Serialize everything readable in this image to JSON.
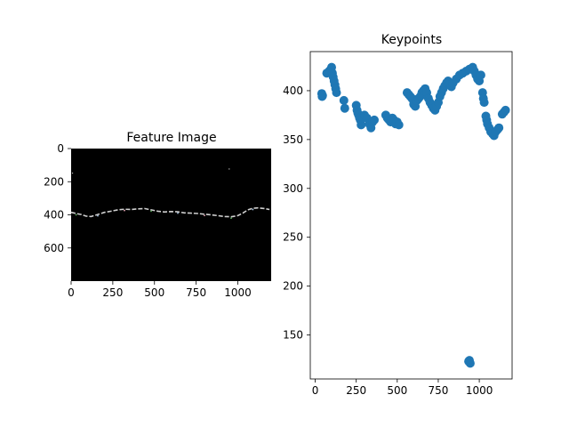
{
  "figure": {
    "background": "#ffffff"
  },
  "chart_data": [
    {
      "type": "image",
      "title": "Feature Image",
      "xlabel": "",
      "ylabel": "",
      "xlim": [
        0,
        1200
      ],
      "ylim": [
        800,
        0
      ],
      "xticks": [
        0,
        250,
        500,
        750,
        1000
      ],
      "yticks": [
        0,
        200,
        400,
        600
      ],
      "background": "#000000",
      "trace_color": "#cfcfcf",
      "accent_colors": [
        "#e0a0b0",
        "#60b060",
        "#a0c0e0"
      ],
      "trace": [
        [
          0,
          385
        ],
        [
          30,
          392
        ],
        [
          60,
          398
        ],
        [
          90,
          408
        ],
        [
          120,
          410
        ],
        [
          160,
          398
        ],
        [
          200,
          385
        ],
        [
          240,
          378
        ],
        [
          280,
          370
        ],
        [
          320,
          366
        ],
        [
          360,
          368
        ],
        [
          400,
          364
        ],
        [
          440,
          362
        ],
        [
          480,
          370
        ],
        [
          520,
          378
        ],
        [
          560,
          383
        ],
        [
          600,
          380
        ],
        [
          640,
          382
        ],
        [
          680,
          388
        ],
        [
          720,
          390
        ],
        [
          760,
          392
        ],
        [
          800,
          396
        ],
        [
          840,
          400
        ],
        [
          880,
          405
        ],
        [
          920,
          410
        ],
        [
          960,
          412
        ],
        [
          1000,
          405
        ],
        [
          1030,
          390
        ],
        [
          1060,
          370
        ],
        [
          1090,
          360
        ],
        [
          1120,
          358
        ],
        [
          1160,
          362
        ],
        [
          1190,
          368
        ]
      ],
      "specks": [
        [
          5,
          145
        ],
        [
          945,
          120
        ]
      ]
    },
    {
      "type": "scatter",
      "title": "Keypoints",
      "xlabel": "",
      "ylabel": "",
      "xlim": [
        -30,
        1200
      ],
      "ylim": [
        105,
        440
      ],
      "xticks": [
        0,
        250,
        500,
        750,
        1000
      ],
      "yticks": [
        150,
        200,
        250,
        300,
        350,
        400
      ],
      "color": "#1f77b4",
      "points": [
        [
          40,
          397
        ],
        [
          42,
          394
        ],
        [
          45,
          395
        ],
        [
          70,
          418
        ],
        [
          85,
          420
        ],
        [
          95,
          422
        ],
        [
          100,
          424
        ],
        [
          105,
          418
        ],
        [
          110,
          414
        ],
        [
          115,
          410
        ],
        [
          120,
          406
        ],
        [
          125,
          402
        ],
        [
          130,
          398
        ],
        [
          175,
          390
        ],
        [
          180,
          382
        ],
        [
          250,
          385
        ],
        [
          255,
          380
        ],
        [
          260,
          377
        ],
        [
          265,
          375
        ],
        [
          270,
          372
        ],
        [
          275,
          370
        ],
        [
          280,
          365
        ],
        [
          290,
          372
        ],
        [
          300,
          375
        ],
        [
          315,
          372
        ],
        [
          330,
          366
        ],
        [
          340,
          362
        ],
        [
          350,
          368
        ],
        [
          360,
          370
        ],
        [
          430,
          375
        ],
        [
          440,
          372
        ],
        [
          450,
          370
        ],
        [
          460,
          368
        ],
        [
          470,
          372
        ],
        [
          480,
          370
        ],
        [
          490,
          366
        ],
        [
          500,
          368
        ],
        [
          510,
          365
        ],
        [
          560,
          398
        ],
        [
          570,
          396
        ],
        [
          580,
          394
        ],
        [
          590,
          392
        ],
        [
          600,
          386
        ],
        [
          610,
          384
        ],
        [
          620,
          390
        ],
        [
          630,
          392
        ],
        [
          640,
          394
        ],
        [
          650,
          398
        ],
        [
          660,
          400
        ],
        [
          670,
          402
        ],
        [
          680,
          398
        ],
        [
          690,
          392
        ],
        [
          700,
          388
        ],
        [
          710,
          385
        ],
        [
          720,
          382
        ],
        [
          730,
          380
        ],
        [
          740,
          384
        ],
        [
          750,
          388
        ],
        [
          760,
          394
        ],
        [
          770,
          398
        ],
        [
          780,
          402
        ],
        [
          790,
          405
        ],
        [
          800,
          408
        ],
        [
          810,
          410
        ],
        [
          820,
          406
        ],
        [
          830,
          404
        ],
        [
          840,
          408
        ],
        [
          860,
          412
        ],
        [
          880,
          416
        ],
        [
          900,
          418
        ],
        [
          920,
          420
        ],
        [
          940,
          422
        ],
        [
          960,
          424
        ],
        [
          970,
          420
        ],
        [
          980,
          416
        ],
        [
          990,
          412
        ],
        [
          1000,
          410
        ],
        [
          1010,
          416
        ],
        [
          1020,
          398
        ],
        [
          1025,
          392
        ],
        [
          1030,
          388
        ],
        [
          1040,
          374
        ],
        [
          1045,
          370
        ],
        [
          1050,
          366
        ],
        [
          1060,
          362
        ],
        [
          1070,
          358
        ],
        [
          1080,
          356
        ],
        [
          1090,
          354
        ],
        [
          1100,
          358
        ],
        [
          1110,
          360
        ],
        [
          1120,
          362
        ],
        [
          1140,
          376
        ],
        [
          1150,
          378
        ],
        [
          1160,
          380
        ],
        [
          935,
          123
        ],
        [
          945,
          121
        ],
        [
          940,
          124
        ]
      ]
    }
  ]
}
